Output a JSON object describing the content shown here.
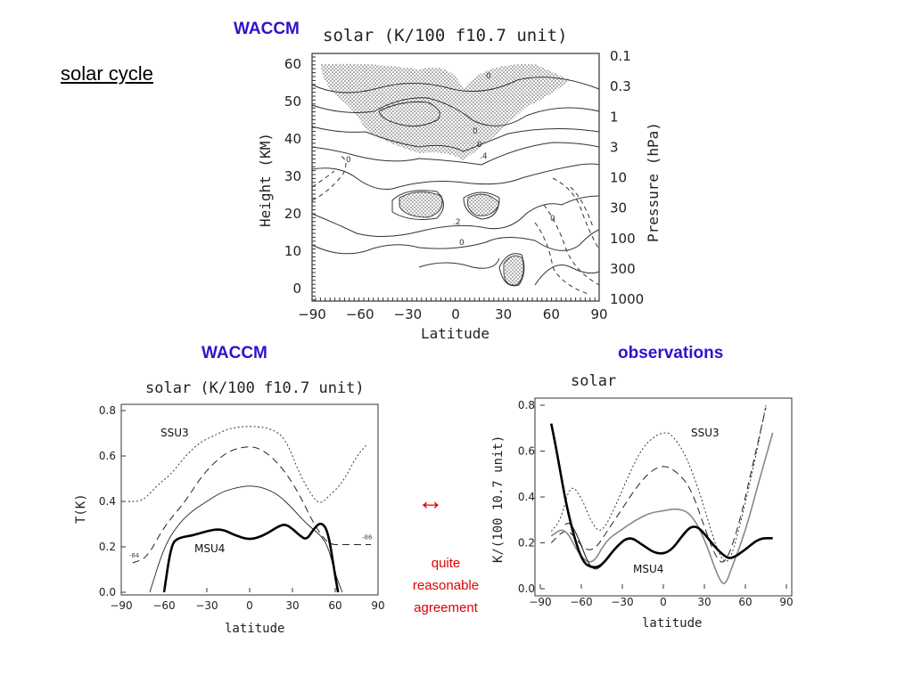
{
  "slide": {
    "title": "solar cycle",
    "top_label": "WACCM",
    "left_label": "WACCM",
    "right_label": "observations",
    "arrow": "↔",
    "note_lines": [
      "quite",
      "reasonable",
      "agreement"
    ]
  },
  "colors": {
    "label_blue": "#3311cc",
    "note_red": "#e00000"
  },
  "chart_data": [
    {
      "type": "contour",
      "title": "solar (K/100 f10.7 unit)",
      "xlabel": "Latitude",
      "ylabel": "Height (KM)",
      "ylabel_right": "Pressure (hPa)",
      "xticks": [
        "−90",
        "−60",
        "−30",
        "0",
        "30",
        "60",
        "90"
      ],
      "yticks": [
        "0",
        "10",
        "20",
        "30",
        "40",
        "50",
        "60"
      ],
      "pressure_ticks": [
        "1000",
        "300",
        "100",
        "30",
        "10",
        "3",
        "1",
        "0.3",
        "0.1"
      ],
      "xlim": [
        -90,
        90
      ],
      "ylim": [
        0,
        60
      ],
      "contour_labels": [
        "0",
        "0",
        "0",
        "0",
        "0",
        ".4",
        ".2",
        "0"
      ]
    },
    {
      "type": "line",
      "title": "solar (K/100 f10.7 unit)",
      "xlabel": "latitude",
      "ylabel": "T(K)",
      "xlim": [
        -90,
        90
      ],
      "ylim": [
        0,
        0.8
      ],
      "xticks": [
        "−90",
        "−60",
        "−30",
        "0",
        "30",
        "60",
        "90"
      ],
      "yticks": [
        "0.0",
        "0.2",
        "0.4",
        "0.6",
        "0.8"
      ],
      "annotations": [
        "SSU3",
        "MSU4"
      ],
      "series": [
        {
          "style": "dotted",
          "x": [
            -85,
            -75,
            -65,
            -55,
            -45,
            -35,
            -25,
            -15,
            -5,
            5,
            15,
            25,
            35,
            45,
            50,
            55,
            65,
            75,
            82
          ],
          "y": [
            0.4,
            0.4,
            0.47,
            0.52,
            0.6,
            0.66,
            0.69,
            0.72,
            0.73,
            0.73,
            0.72,
            0.68,
            0.52,
            0.41,
            0.39,
            0.42,
            0.48,
            0.6,
            0.65
          ]
        },
        {
          "style": "dashed",
          "x": [
            -82,
            -72,
            -60,
            -45,
            -35,
            -25,
            -15,
            -5,
            5,
            15,
            25,
            35,
            45,
            55,
            65,
            75,
            85
          ],
          "y": [
            0.13,
            0.15,
            0.29,
            0.4,
            0.5,
            0.57,
            0.62,
            0.64,
            0.64,
            0.6,
            0.53,
            0.43,
            0.3,
            0.21,
            0.21,
            0.21,
            0.21
          ],
          "end_labels": {
            "start": "-84",
            "end": "-86"
          }
        },
        {
          "style": "thin",
          "x": [
            -70,
            -60,
            -50,
            -40,
            -30,
            -20,
            -10,
            0,
            10,
            20,
            30,
            40,
            50,
            55,
            60,
            65
          ],
          "y": [
            0.0,
            0.2,
            0.3,
            0.36,
            0.4,
            0.44,
            0.46,
            0.47,
            0.46,
            0.43,
            0.37,
            0.3,
            0.25,
            0.2,
            0.08,
            0.0
          ]
        },
        {
          "style": "bold",
          "x": [
            -60,
            -55,
            -50,
            -40,
            -30,
            -20,
            -10,
            0,
            10,
            20,
            25,
            30,
            35,
            40,
            45,
            50,
            55,
            60,
            62
          ],
          "y": [
            0.0,
            0.21,
            0.24,
            0.25,
            0.27,
            0.28,
            0.25,
            0.23,
            0.25,
            0.29,
            0.3,
            0.28,
            0.25,
            0.23,
            0.28,
            0.31,
            0.27,
            0.07,
            0.0
          ]
        }
      ]
    },
    {
      "type": "line",
      "title": "solar",
      "xlabel": "latitude",
      "ylabel": "K/(100 10.7 unit)",
      "xlim": [
        -90,
        90
      ],
      "ylim": [
        0,
        0.8
      ],
      "xticks": [
        "−90",
        "−60",
        "−30",
        "0",
        "30",
        "60",
        "90"
      ],
      "yticks": [
        "0.0",
        "0.2",
        "0.4",
        "0.6",
        "0.8"
      ],
      "annotations": [
        "SSU3",
        "MSU4"
      ],
      "series": [
        {
          "style": "dotted",
          "x": [
            -82,
            -75,
            -68,
            -60,
            -52,
            -45,
            -35,
            -25,
            -15,
            -5,
            0,
            5,
            15,
            25,
            35,
            42,
            48,
            55,
            65,
            75
          ],
          "y": [
            0.25,
            0.3,
            0.46,
            0.4,
            0.28,
            0.24,
            0.36,
            0.5,
            0.62,
            0.67,
            0.68,
            0.68,
            0.6,
            0.45,
            0.25,
            0.13,
            0.11,
            0.25,
            0.5,
            0.8
          ]
        },
        {
          "style": "dashed",
          "x": [
            -82,
            -72,
            -65,
            -58,
            -50,
            -40,
            -30,
            -20,
            -10,
            0,
            10,
            20,
            30,
            38,
            45,
            55,
            65,
            75
          ],
          "y": [
            0.2,
            0.26,
            0.23,
            0.17,
            0.17,
            0.26,
            0.35,
            0.44,
            0.51,
            0.54,
            0.51,
            0.44,
            0.27,
            0.14,
            0.1,
            0.27,
            0.53,
            0.79
          ]
        },
        {
          "style": "gray",
          "x": [
            -82,
            -72,
            -62,
            -52,
            -42,
            -30,
            -20,
            -10,
            0,
            10,
            20,
            30,
            40,
            45,
            50,
            60,
            70,
            80
          ],
          "y": [
            0.23,
            0.27,
            0.15,
            0.1,
            0.21,
            0.26,
            0.3,
            0.33,
            0.34,
            0.35,
            0.33,
            0.22,
            0.05,
            0.01,
            0.09,
            0.25,
            0.47,
            0.68
          ]
        },
        {
          "style": "thin-black",
          "x": [
            -72,
            -68,
            -62,
            -55,
            -50,
            -45
          ],
          "y": [
            0.28,
            0.29,
            0.22,
            0.11,
            0.08,
            0.1
          ]
        },
        {
          "style": "bold",
          "x": [
            -82,
            -78,
            -70,
            -60,
            -52,
            -45,
            -35,
            -25,
            -15,
            -5,
            5,
            15,
            20,
            25,
            30,
            38,
            45,
            50,
            60,
            70,
            80
          ],
          "y": [
            0.72,
            0.6,
            0.33,
            0.12,
            0.09,
            0.1,
            0.18,
            0.23,
            0.19,
            0.15,
            0.16,
            0.24,
            0.27,
            0.27,
            0.24,
            0.18,
            0.14,
            0.13,
            0.17,
            0.22,
            0.22
          ]
        }
      ]
    }
  ]
}
